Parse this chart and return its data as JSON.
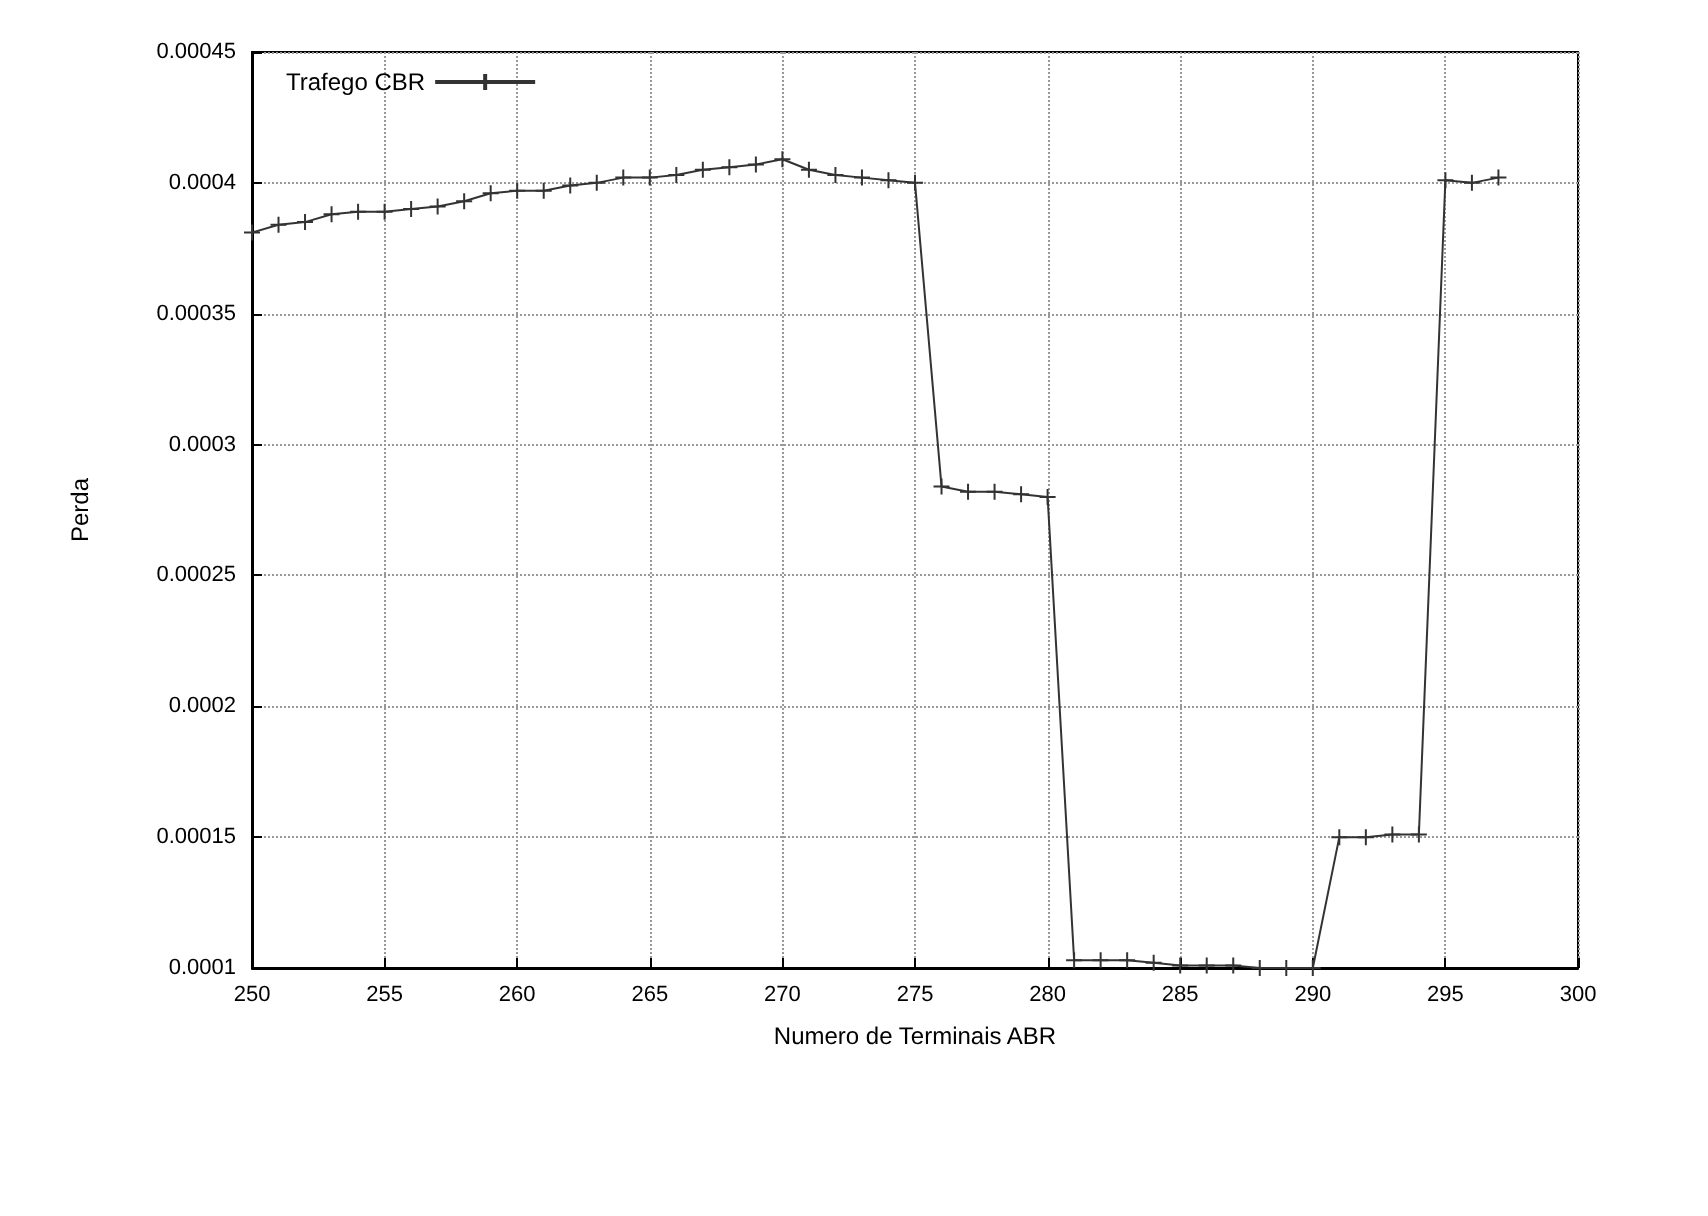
{
  "chart_data": {
    "type": "line",
    "xlabel": "Numero de Terminais ABR",
    "ylabel": "Perda",
    "x": [
      250,
      251,
      252,
      253,
      254,
      255,
      256,
      257,
      258,
      259,
      260,
      261,
      262,
      263,
      264,
      265,
      266,
      267,
      268,
      269,
      270,
      271,
      272,
      273,
      274,
      275,
      276,
      277,
      278,
      279,
      280,
      281,
      282,
      283,
      284,
      285,
      286,
      287,
      288,
      289,
      290,
      291,
      292,
      293,
      294,
      295,
      296,
      297
    ],
    "series": [
      {
        "name": "Trafego CBR",
        "color": "#333333",
        "values": [
          0.000381,
          0.000384,
          0.000385,
          0.000388,
          0.000389,
          0.000389,
          0.00039,
          0.000391,
          0.000393,
          0.000396,
          0.000397,
          0.000397,
          0.000399,
          0.0004,
          0.000402,
          0.000402,
          0.000403,
          0.000405,
          0.000406,
          0.000407,
          0.000409,
          0.000405,
          0.000403,
          0.000402,
          0.000401,
          0.0004,
          0.000284,
          0.000282,
          0.000282,
          0.000281,
          0.00028,
          0.000103,
          0.000103,
          0.000103,
          0.000102,
          0.000101,
          0.000101,
          0.000101,
          0.0001,
          0.0001,
          0.0001,
          0.00015,
          0.00015,
          0.000151,
          0.000151,
          0.000401,
          0.0004,
          0.000402
        ]
      }
    ],
    "xlim": [
      250,
      300
    ],
    "xticks": [
      250,
      255,
      260,
      265,
      270,
      275,
      280,
      285,
      290,
      295,
      300
    ],
    "ylim": [
      0.0001,
      0.00045
    ],
    "yticks": [
      0.0001,
      0.00015,
      0.0002,
      0.00025,
      0.0003,
      0.00035,
      0.0004,
      0.00045
    ],
    "grid": true,
    "legend": "top left",
    "marker": "cross",
    "line_style": "solid"
  }
}
